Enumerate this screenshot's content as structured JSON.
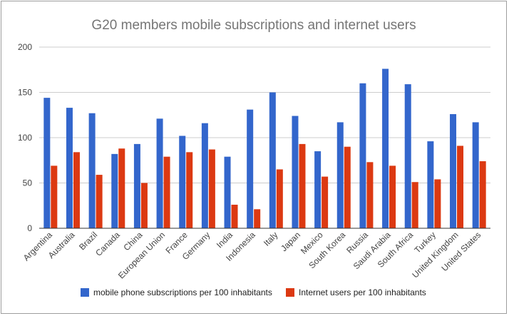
{
  "chart_data": {
    "type": "bar",
    "title": "G20 members mobile subscriptions and internet users",
    "xlabel": "",
    "ylabel": "",
    "ylim": [
      0,
      200
    ],
    "yticks": [
      0,
      50,
      100,
      150,
      200
    ],
    "categories": [
      "Argentina",
      "Australia",
      "Brazil",
      "Canada",
      "China",
      "European Union",
      "France",
      "Germany",
      "India",
      "Indonesia",
      "Italy",
      "Japan",
      "Mexico",
      "South Korea",
      "Russia",
      "Saudi Arabia",
      "South Africa",
      "Turkey",
      "United Kingdom",
      "United States"
    ],
    "series": [
      {
        "name": "mobile phone subscriptions per 100 inhabitants",
        "color": "#3366cc",
        "values": [
          144,
          133,
          127,
          82,
          93,
          121,
          102,
          116,
          79,
          131,
          150,
          124,
          85,
          117,
          160,
          176,
          159,
          96,
          126,
          117
        ]
      },
      {
        "name": "Internet users per 100 inhabitants",
        "color": "#dc3912",
        "values": [
          69,
          84,
          59,
          88,
          50,
          79,
          84,
          87,
          26,
          21,
          65,
          93,
          57,
          90,
          73,
          69,
          51,
          54,
          91,
          74
        ]
      }
    ],
    "legend_position": "bottom"
  }
}
